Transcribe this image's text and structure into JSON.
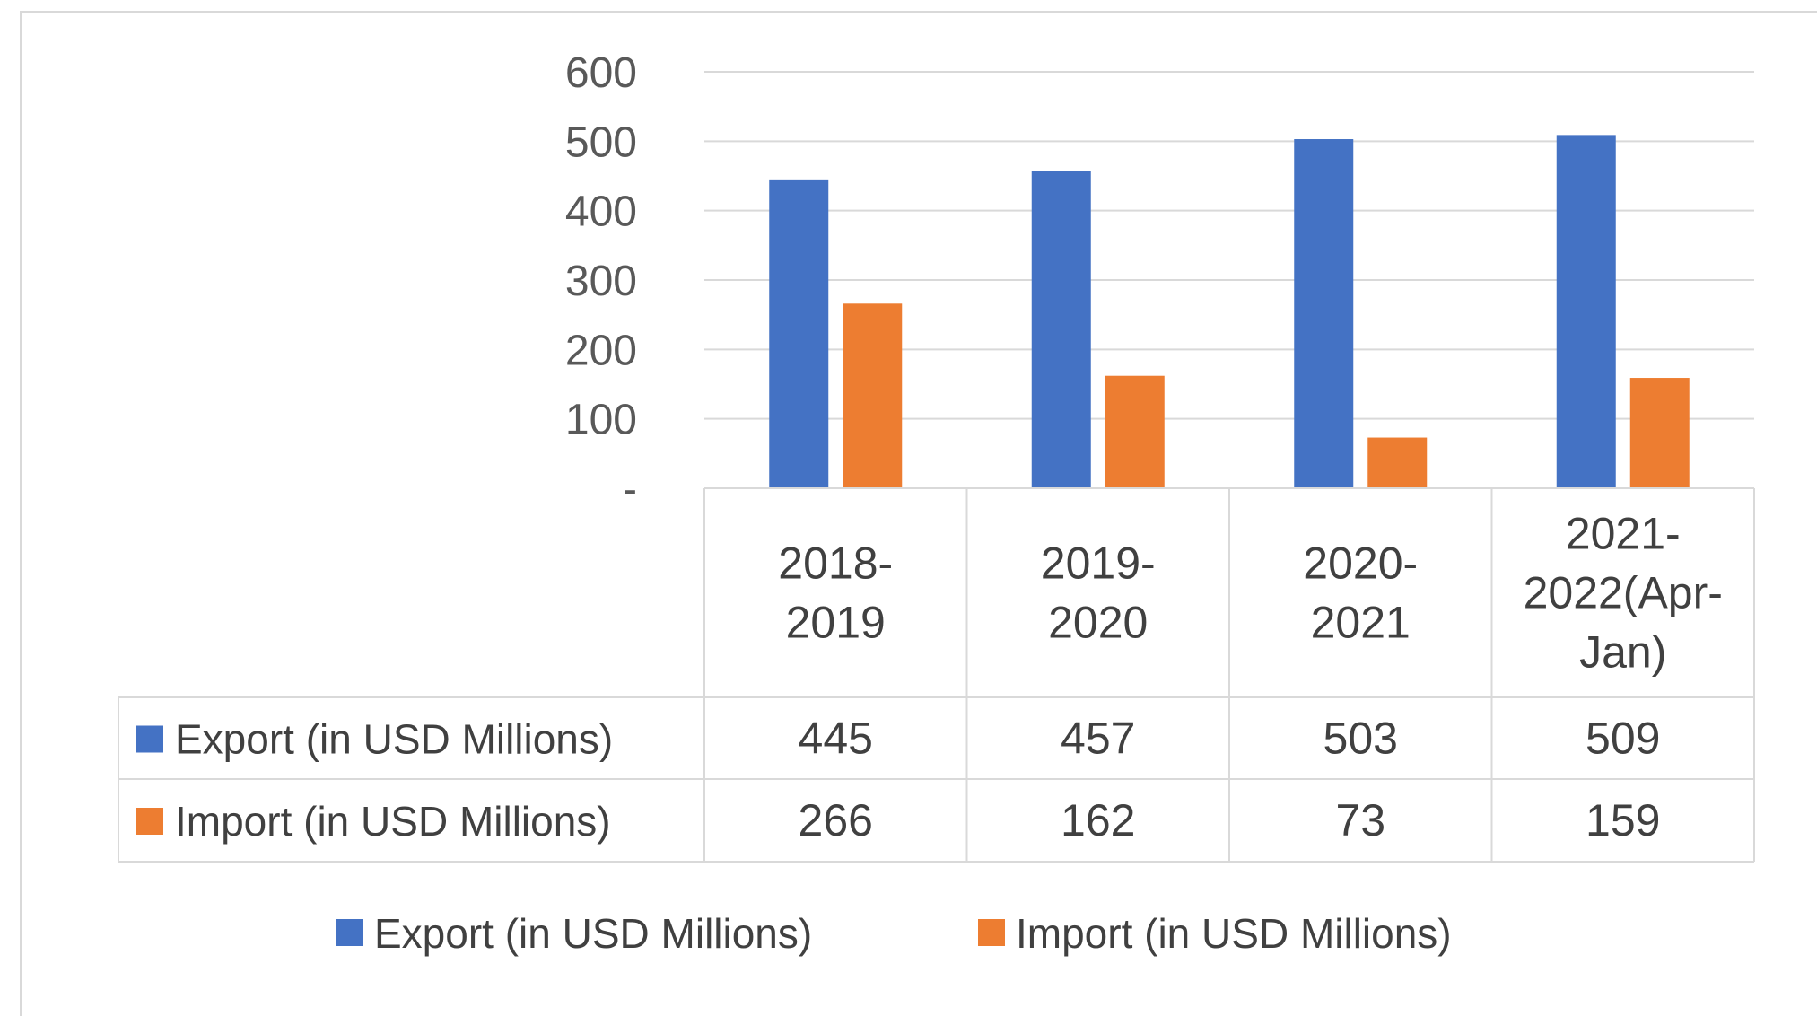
{
  "chart_data": {
    "type": "bar",
    "categories": [
      "2018-2019",
      "2019-2020",
      "2020-2021",
      "2021-2022(Apr-Jan)"
    ],
    "category_lines": [
      [
        "2018-",
        "2019"
      ],
      [
        "2019-",
        "2020"
      ],
      [
        "2020-",
        "2021"
      ],
      [
        "2021-",
        "2022(Apr-",
        "Jan)"
      ]
    ],
    "series": [
      {
        "name": "Export  (in USD Millions)",
        "values": [
          445,
          457,
          503,
          509
        ],
        "color": "#4472C4"
      },
      {
        "name": "Import (in USD Millions)",
        "values": [
          266,
          162,
          73,
          159
        ],
        "color": "#ED7D31"
      }
    ],
    "ylim": [
      0,
      600
    ],
    "yticks": [
      0,
      100,
      200,
      300,
      400,
      500,
      600
    ],
    "ytick_labels": [
      "-",
      "100",
      "200",
      "300",
      "400",
      "500",
      "600"
    ],
    "grid": true,
    "legend_position": "bottom",
    "data_table": true
  }
}
